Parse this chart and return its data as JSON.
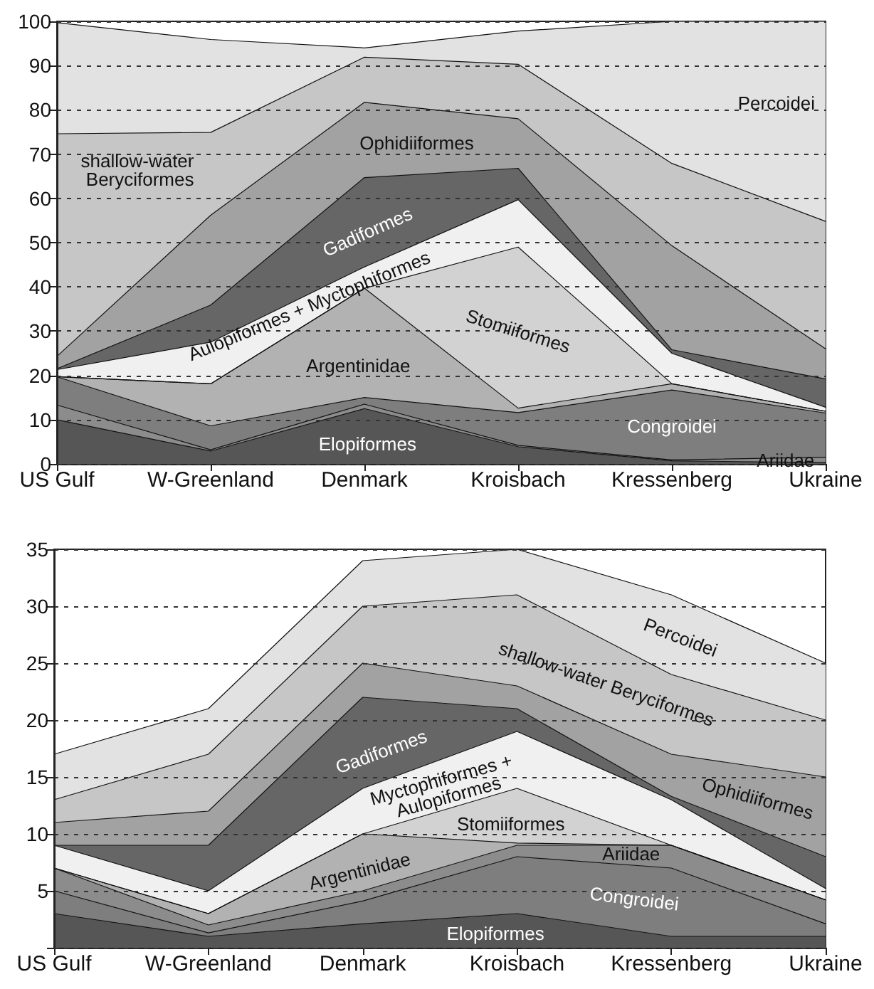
{
  "chart_data": [
    {
      "type": "area",
      "stacked": true,
      "categories": [
        "US Gulf",
        "W-Greenland",
        "Denmark",
        "Kroisbach",
        "Kressenberg",
        "Ukraine"
      ],
      "ylim": [
        0,
        100
      ],
      "yticks": [
        0,
        10,
        20,
        30,
        40,
        50,
        60,
        70,
        80,
        90,
        100
      ],
      "grid": "y",
      "legend": false,
      "marker": "none",
      "series": [
        {
          "name": "Elopiformes",
          "color": "#565656",
          "values": [
            10,
            2.9,
            12.5,
            3.9,
            0.7,
            0.3
          ]
        },
        {
          "name": "Ariidae",
          "color": "#8c8c8c",
          "values": [
            3.3,
            0.3,
            1,
            0.3,
            0.2,
            1.2
          ]
        },
        {
          "name": "Congroidei",
          "color": "#7e7e7e",
          "values": [
            6.4,
            5.4,
            1.5,
            7.4,
            15.8,
            10
          ]
        },
        {
          "name": "Argentinidae",
          "color": "#b2b2b2",
          "values": [
            0,
            9.5,
            24.7,
            1,
            1.4,
            0.4
          ]
        },
        {
          "name": "Stomiiformes",
          "color": "#d2d2d2",
          "values": [
            0,
            0,
            0,
            36.4,
            0,
            0
          ]
        },
        {
          "name": "Aulopiformes + Myctophiformes",
          "color": "#f0f0f0",
          "values": [
            1.6,
            9.4,
            4.8,
            10.7,
            6.9,
            0.9
          ]
        },
        {
          "name": "Gadiformes",
          "color": "#666666",
          "values": [
            0.2,
            8.4,
            20.2,
            7.1,
            0.8,
            6.4
          ]
        },
        {
          "name": "Ophidiiformes",
          "color": "#a2a2a2",
          "values": [
            2.8,
            20.3,
            17,
            11.2,
            23.5,
            6.8
          ]
        },
        {
          "name": "shallow-water Beryciformes",
          "color": "#c6c6c6",
          "values": [
            50.3,
            18.7,
            10.2,
            12.3,
            18.6,
            28.8
          ]
        },
        {
          "name": "Percoidei",
          "color": "#e2e2e2",
          "values": [
            25.1,
            21,
            2.1,
            7.5,
            32.1,
            45.2
          ]
        }
      ]
    },
    {
      "type": "area",
      "stacked": true,
      "categories": [
        "US Gulf",
        "W-Greenland",
        "Denmark",
        "Kroisbach",
        "Kressenberg",
        "Ukraine"
      ],
      "ylim": [
        0,
        35
      ],
      "yticks": [
        {
          "value": 0,
          "label": null
        },
        5,
        10,
        15,
        20,
        25,
        30,
        35
      ],
      "grid": "y",
      "legend": false,
      "marker": "none",
      "series": [
        {
          "name": "Elopiformes",
          "color": "#565656",
          "values": [
            3,
            1,
            2.1,
            3,
            1,
            1
          ]
        },
        {
          "name": "Congroidei",
          "color": "#7e7e7e",
          "values": [
            2,
            0.3,
            2,
            5,
            6,
            1.1
          ]
        },
        {
          "name": "Ariidae",
          "color": "#8c8c8c",
          "values": [
            2,
            0.7,
            0.9,
            1,
            2,
            2.1
          ]
        },
        {
          "name": "Argentinidae",
          "color": "#b2b2b2",
          "values": [
            0,
            1,
            5,
            0.2,
            0,
            0
          ]
        },
        {
          "name": "Stomiiformes",
          "color": "#d2d2d2",
          "values": [
            0,
            0,
            0,
            4.8,
            0,
            0
          ]
        },
        {
          "name": "Myctophiformes + Aulopiformes",
          "color": "#f0f0f0",
          "values": [
            2,
            2,
            4,
            5,
            4,
            1
          ]
        },
        {
          "name": "Gadiformes",
          "color": "#666666",
          "values": [
            0,
            4,
            8,
            2,
            0.3,
            2.8
          ]
        },
        {
          "name": "Ophidiiformes",
          "color": "#a2a2a2",
          "values": [
            2,
            3,
            3,
            2,
            3.7,
            7
          ]
        },
        {
          "name": "shallow-water Beryciformes",
          "color": "#c6c6c6",
          "values": [
            2,
            5,
            5,
            8,
            7,
            5
          ]
        },
        {
          "name": "Percoidei",
          "color": "#e2e2e2",
          "values": [
            4,
            4,
            4,
            4,
            7,
            5
          ]
        }
      ]
    }
  ]
}
